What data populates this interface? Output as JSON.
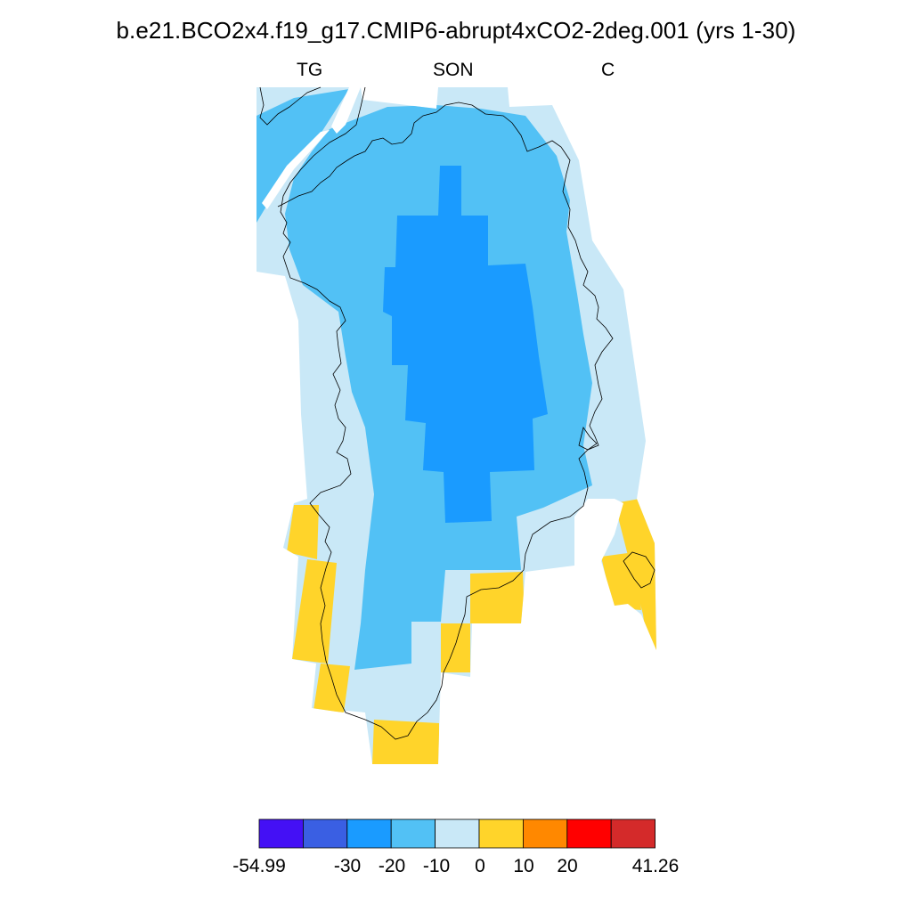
{
  "title": "b.e21.BCO2x4.f19_g17.CMIP6-abrupt4xCO2-2deg.001 (yrs 1-30)",
  "subtitles": {
    "left": "TG",
    "center": "SON",
    "right": "C"
  },
  "colorbar": {
    "colors": [
      "#4410f5",
      "#3a5fe3",
      "#1a9bff",
      "#52c1f5",
      "#c9e8f7",
      "#ffd42a",
      "#ff8800",
      "#ff0000",
      "#d42a2a"
    ],
    "tick_labels": [
      "-54.99",
      "-30",
      "-20",
      "-10",
      "0",
      "10",
      "20",
      "41.26"
    ]
  },
  "legend_colors": {
    "-20 to -10 (dark)": "#1a9bff",
    "-10 to -5": "#52c1f5",
    "-5 to 0": "#c9e8f7",
    "0 to 10": "#ffd42a"
  }
}
